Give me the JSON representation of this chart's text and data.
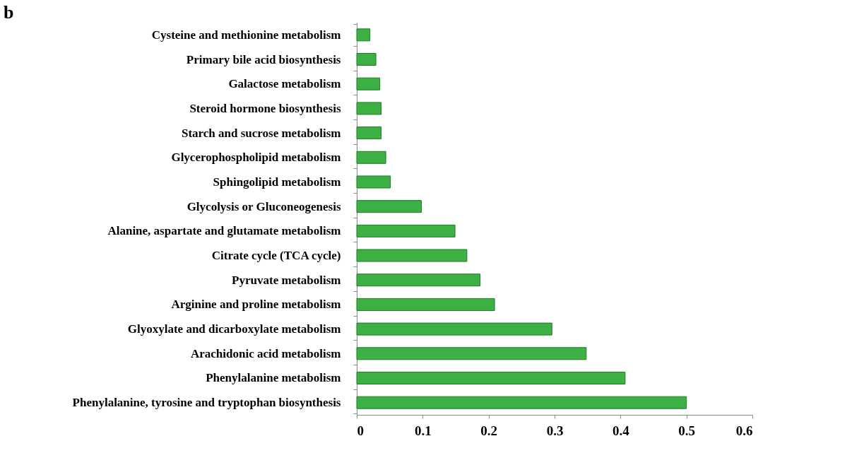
{
  "chart_data": {
    "type": "bar",
    "orientation": "horizontal",
    "title": "b",
    "categories": [
      "Cysteine and methionine metabolism",
      "Primary bile acid biosynthesis",
      "Galactose metabolism",
      "Steroid hormone biosynthesis",
      "Starch and sucrose metabolism",
      "Glycerophospholipid metabolism",
      "Sphingolipid metabolism",
      "Glycolysis or Gluconeogenesis",
      "Alanine, aspartate and glutamate metabolism",
      "Citrate cycle (TCA cycle)",
      "Pyruvate metabolism",
      "Arginine and proline metabolism",
      "Glyoxylate and dicarboxylate metabolism",
      "Arachidonic acid metabolism",
      "Phenylalanine metabolism",
      "Phenylalanine, tyrosine and tryptophan biosynthesis"
    ],
    "values": [
      0.02,
      0.029,
      0.035,
      0.037,
      0.037,
      0.044,
      0.051,
      0.098,
      0.149,
      0.167,
      0.187,
      0.209,
      0.296,
      0.348,
      0.407,
      0.5
    ],
    "color": "#3cb043",
    "xlim": [
      0,
      0.6
    ],
    "xticks": [
      0,
      0.1,
      0.2,
      0.3,
      0.4,
      0.5,
      0.6
    ],
    "grid": false
  }
}
